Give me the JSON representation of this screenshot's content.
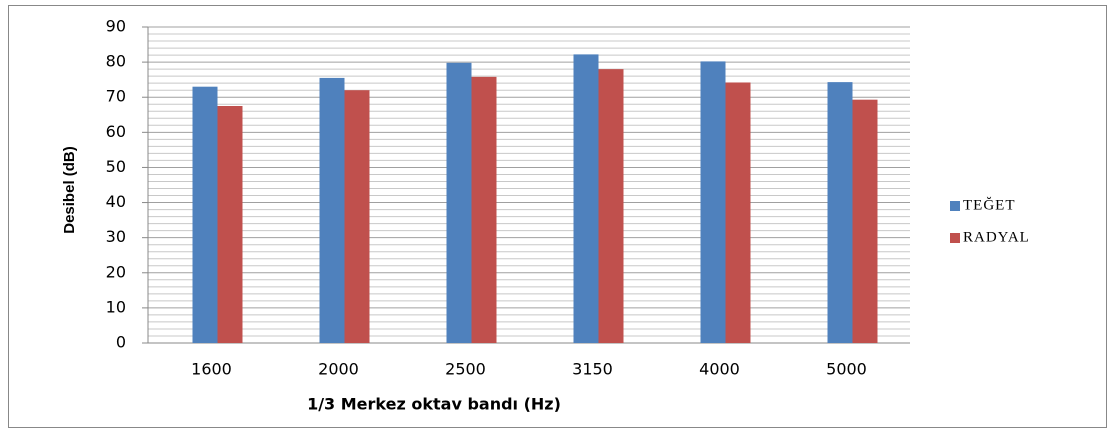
{
  "chart_data": {
    "type": "bar",
    "x_label": "1/3 Merkez oktav bandı (Hz)",
    "y_label": "Desibel (dB)",
    "categories": [
      "1600",
      "2000",
      "2500",
      "3150",
      "4000",
      "5000"
    ],
    "series": [
      {
        "name": "TEĞET",
        "color": "#4f81bd",
        "values": [
          73,
          75.5,
          79.8,
          82.2,
          80.2,
          74.3
        ]
      },
      {
        "name": "RADYAL",
        "color": "#c0504d",
        "values": [
          67.5,
          72,
          75.8,
          78,
          74.2,
          69.3
        ]
      }
    ],
    "ylim": [
      0,
      90
    ],
    "yticks": [
      0,
      10,
      20,
      30,
      40,
      50,
      60,
      70,
      80,
      90
    ],
    "grid": true,
    "legend": "right"
  }
}
